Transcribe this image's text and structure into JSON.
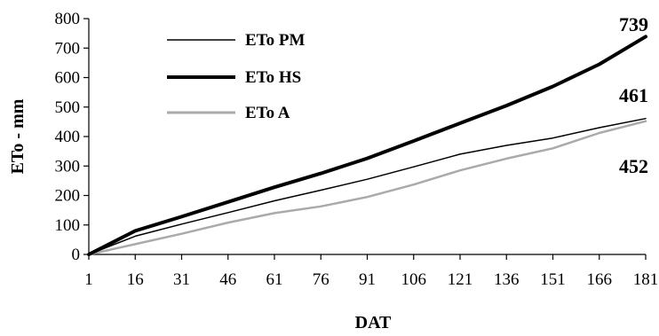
{
  "chart_data": {
    "type": "line",
    "title": "",
    "xlabel": "DAT",
    "ylabel": "ETo - mm",
    "xlim": [
      1,
      181
    ],
    "ylim": [
      0,
      800
    ],
    "x_ticks": [
      "1",
      "16",
      "31",
      "46",
      "61",
      "76",
      "91",
      "106",
      "121",
      "136",
      "151",
      "166",
      "181"
    ],
    "y_ticks": [
      "0",
      "100",
      "200",
      "300",
      "400",
      "500",
      "600",
      "700",
      "800"
    ],
    "grid": false,
    "legend_position": "top-left",
    "series": [
      {
        "name": "ETo PM",
        "color": "#000000",
        "style": "thin",
        "x": [
          1,
          16,
          31,
          46,
          61,
          76,
          91,
          106,
          121,
          136,
          151,
          166,
          181
        ],
        "y": [
          0,
          62,
          103,
          142,
          182,
          218,
          255,
          297,
          340,
          370,
          395,
          430,
          461
        ]
      },
      {
        "name": "ETo HS",
        "color": "#000000",
        "style": "thick",
        "x": [
          1,
          16,
          31,
          46,
          61,
          76,
          91,
          106,
          121,
          136,
          151,
          166,
          181
        ],
        "y": [
          0,
          80,
          128,
          178,
          228,
          275,
          326,
          385,
          445,
          505,
          570,
          645,
          739
        ]
      },
      {
        "name": "ETo A",
        "color": "#aaaaaa",
        "style": "gray",
        "x": [
          1,
          16,
          31,
          46,
          61,
          76,
          91,
          106,
          121,
          136,
          151,
          166,
          181
        ],
        "y": [
          0,
          35,
          70,
          108,
          140,
          163,
          195,
          237,
          285,
          325,
          360,
          412,
          452
        ]
      }
    ],
    "end_labels": [
      "739",
      "461",
      "452"
    ]
  }
}
